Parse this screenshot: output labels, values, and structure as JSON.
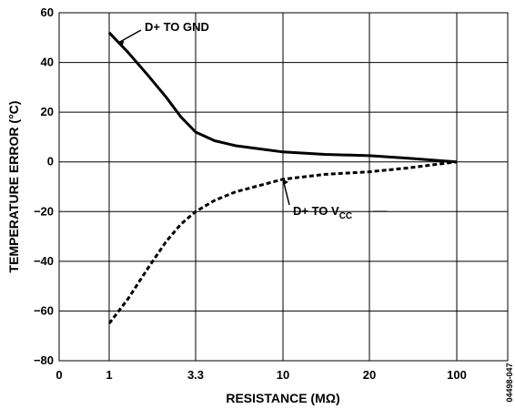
{
  "chart_data": {
    "type": "line",
    "title": "",
    "xlabel": "RESISTANCE (MΩ)",
    "ylabel": "TEMPERATURE ERROR (°C)",
    "xlim": [
      0,
      100
    ],
    "ylim": [
      -80,
      60
    ],
    "x_ticks": [
      "0",
      "1",
      "3.3",
      "10",
      "20",
      "100"
    ],
    "y_ticks": [
      60,
      40,
      20,
      0,
      -20,
      -40,
      -60,
      -80
    ],
    "grid": true,
    "series": [
      {
        "name": "D+ TO GND",
        "line_style": "solid",
        "x": [
          1,
          1.3,
          1.7,
          2.2,
          2.7,
          3.3,
          4.2,
          5.5,
          7,
          10,
          14,
          20,
          40,
          100
        ],
        "y": [
          52,
          44,
          35,
          26,
          18,
          12,
          8.5,
          6.5,
          5.5,
          4,
          3,
          2.5,
          1.5,
          0
        ]
      },
      {
        "name": "D+ TO V_CC",
        "line_style": "dashed",
        "x": [
          1,
          1.3,
          1.7,
          2.2,
          2.7,
          3.3,
          4.2,
          5.5,
          7,
          10,
          14,
          20,
          40,
          100
        ],
        "y": [
          -65,
          -55,
          -43,
          -32,
          -25,
          -20,
          -15.5,
          -12,
          -10,
          -7,
          -5,
          -4,
          -2.5,
          0
        ]
      }
    ],
    "annotations": [
      {
        "text": "D+ TO GND",
        "series": 0
      },
      {
        "text": "D+ TO V",
        "subscript": "CC",
        "series": 1
      }
    ],
    "figure_id": "04498-047"
  }
}
